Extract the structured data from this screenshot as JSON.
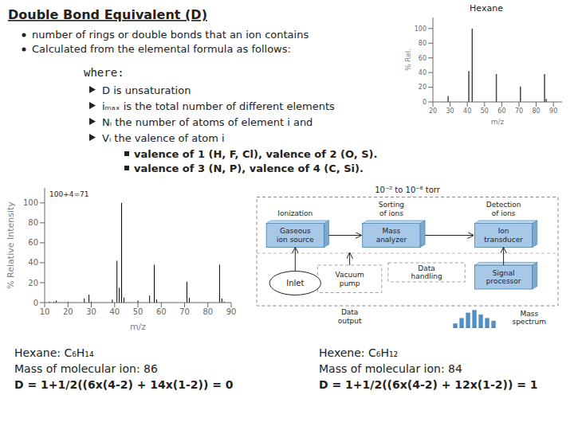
{
  "chart_data": [
    {
      "type": "text",
      "title": "Double Bond Equivalent (D)",
      "annotations": [
        "number of rings or double bonds that an ion contains",
        "Calculated from the elemental formula as follows:",
        "where:",
        "D is unsaturation",
        "iₘₐₓ is the total number of different elements",
        "Nᵢ the number of atoms of element i and",
        "Vᵢ the valence of atom i",
        "valence of 1 (H, F, Cl), valence of 2 (O, S).",
        "valence of 3 (N, P), valence of 4 (C, Si).",
        "Hexane: C₆H₁₄",
        "Mass of molecular ion: 86",
        "D = 1+1/2((6x(4-2) + 14x(1-2)) = 0",
        "Hexene: C₆H₁₂",
        "Mass of molecular ion: 84",
        "D = 1+1/2((6x(4-2) + 12x(1-2)) = 1"
      ]
    },
    {
      "type": "bar",
      "x": [
        12,
        14,
        15,
        20,
        27,
        29,
        30,
        39,
        41,
        42,
        43,
        44,
        50,
        55,
        57,
        58,
        71,
        72,
        85,
        86,
        87
      ],
      "values": [
        1,
        1,
        2,
        1,
        4,
        8,
        1,
        3,
        42,
        15,
        100,
        5,
        2,
        7,
        38,
        3,
        21,
        5,
        38,
        4,
        1
      ],
      "color": "#000000",
      "xlabel": "m/z",
      "ylabel": "% Relative Intensity",
      "xlim": [
        10,
        90
      ],
      "xticks": [
        10,
        20,
        30,
        40,
        50,
        60,
        70,
        80,
        90
      ],
      "ylim": [
        0,
        115
      ],
      "yticks": [
        0,
        20,
        40,
        60,
        80,
        100
      ],
      "annotations": [
        "100+4=71"
      ]
    },
    {
      "type": "bar",
      "title": "Hexane",
      "x": [
        29,
        41,
        43,
        57,
        71,
        85,
        86
      ],
      "values": [
        8,
        42,
        100,
        38,
        21,
        38,
        4
      ],
      "color": "#444444",
      "xlabel": "m/z",
      "ylabel": "% Rel.",
      "xlim": [
        20,
        95
      ],
      "xticks": [
        20,
        30,
        40,
        50,
        60,
        70,
        80,
        90
      ],
      "ylim": [
        0,
        115
      ],
      "yticks": [
        0,
        20,
        40,
        60,
        80,
        100
      ]
    },
    {
      "type": "diagram",
      "annotations": [
        "10⁻² to 10⁻⁸ torr",
        "Ionization",
        "Sorting\nof ions",
        "Detection\nof ions",
        "Gaseous\nion source",
        "Mass\nanalyzer",
        "Ion\ntransducer",
        "Vacuum\npump",
        "Data\nhandling",
        "Signal\nprocessor",
        "Inlet",
        "Data\noutput",
        "Mass\nspectrum"
      ]
    },
    {
      "type": "bar",
      "values": [
        25,
        55,
        85,
        100,
        75,
        55,
        40
      ],
      "color": "#5090C8",
      "ylim": [
        0,
        120
      ],
      "tick_labels": false
    }
  ]
}
